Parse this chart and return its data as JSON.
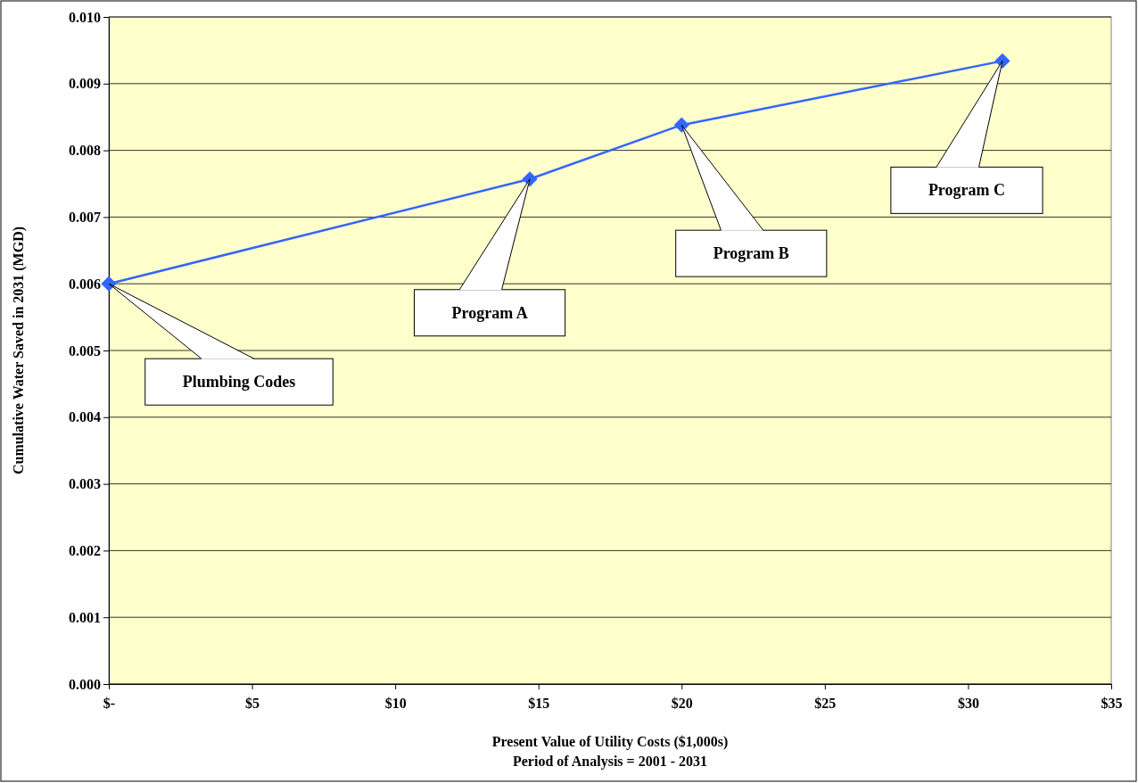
{
  "chart_data": {
    "type": "line",
    "xlabel": "Present Value of Utility Costs ($1,000s)\nPeriod of Analysis = 2001 - 2031",
    "ylabel": "Cumulative Water Saved in 2031 (MGD)",
    "x": [
      0,
      14.7,
      20.0,
      31.2
    ],
    "series": [
      {
        "color": "#3366ff",
        "values": [
          0.006,
          0.00757,
          0.00838,
          0.00934
        ]
      }
    ],
    "xlim": [
      0,
      35
    ],
    "xticks": [
      {
        "value": 0,
        "label": "$-"
      },
      {
        "value": 5,
        "label": "$5"
      },
      {
        "value": 10,
        "label": "$10"
      },
      {
        "value": 15,
        "label": "$15"
      },
      {
        "value": 20,
        "label": "$20"
      },
      {
        "value": 25,
        "label": "$25"
      },
      {
        "value": 30,
        "label": "$30"
      },
      {
        "value": 35,
        "label": "$35"
      }
    ],
    "ylim": [
      0,
      0.01
    ],
    "yticks": [
      {
        "value": 0,
        "label": "0.000"
      },
      {
        "value": 0.001,
        "label": "0.001"
      },
      {
        "value": 0.002,
        "label": "0.002"
      },
      {
        "value": 0.003,
        "label": "0.003"
      },
      {
        "value": 0.004,
        "label": "0.004"
      },
      {
        "value": 0.005,
        "label": "0.005"
      },
      {
        "value": 0.006,
        "label": "0.006"
      },
      {
        "value": 0.007,
        "label": "0.007"
      },
      {
        "value": 0.008,
        "label": "0.008"
      },
      {
        "value": 0.009,
        "label": "0.009"
      },
      {
        "value": 0.01,
        "label": "0.010"
      }
    ],
    "annotations": [
      {
        "text": "Plumbing Codes",
        "x": 0,
        "y": 0.006
      },
      {
        "text": "Program A",
        "x": 14.7,
        "y": 0.00757
      },
      {
        "text": "Program B",
        "x": 20.0,
        "y": 0.00838
      },
      {
        "text": "Program C",
        "x": 31.2,
        "y": 0.00934
      }
    ],
    "grid": "y",
    "marker": "diamond",
    "line_style": "solid"
  }
}
